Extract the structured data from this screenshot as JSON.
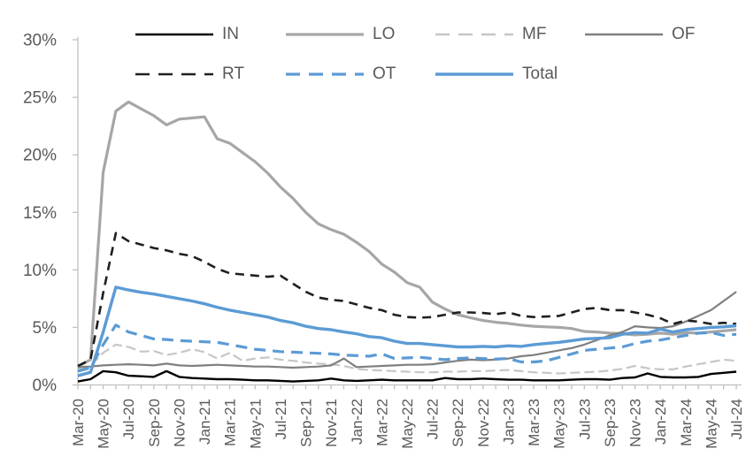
{
  "chart": {
    "title": "",
    "colors": {
      "accent_blue": "#5b9bd5",
      "gray_lodging": "#a6a6a6",
      "gray_office": "#7f7f7f",
      "gray_multifamily": "#c6c6c6",
      "near_black": "#1f1f1f",
      "axis_line": "#c0c0c0",
      "label_text": "#595959"
    }
  },
  "chart_data": {
    "type": "line",
    "title": "",
    "xlabel": "",
    "ylabel": "",
    "y_unit": "%",
    "ylim": [
      0,
      30
    ],
    "y_tick_step": 5,
    "y_tick_labels": [
      "0%",
      "5%",
      "10%",
      "15%",
      "20%",
      "25%",
      "30%"
    ],
    "grid": false,
    "legend_position": "top",
    "x_first_month": "Mar-20",
    "x_last_month": "Jul-24",
    "x_points_monthly": 53,
    "x_tick_labels": [
      "Mar-20",
      "May-20",
      "Jul-20",
      "Sep-20",
      "Nov-20",
      "Jan-21",
      "Mar-21",
      "May-21",
      "Jul-21",
      "Sep-21",
      "Nov-21",
      "Jan-22",
      "Mar-22",
      "May-22",
      "Jul-22",
      "Sep-22",
      "Nov-22",
      "Jan-23",
      "Mar-23",
      "May-23",
      "Jul-23",
      "Sep-23",
      "Nov-23",
      "Jan-24",
      "Mar-24",
      "May-24",
      "Jul-24"
    ],
    "series": [
      {
        "name": "IN",
        "color": "#000000",
        "dash": "",
        "width": 2.4,
        "values": [
          0.3,
          0.5,
          1.2,
          1.1,
          0.8,
          0.75,
          0.7,
          1.2,
          0.7,
          0.6,
          0.55,
          0.5,
          0.5,
          0.45,
          0.4,
          0.4,
          0.35,
          0.3,
          0.35,
          0.4,
          0.55,
          0.4,
          0.35,
          0.4,
          0.45,
          0.4,
          0.4,
          0.4,
          0.4,
          0.6,
          0.5,
          0.5,
          0.55,
          0.5,
          0.45,
          0.45,
          0.4,
          0.4,
          0.4,
          0.45,
          0.5,
          0.5,
          0.45,
          0.6,
          0.65,
          1.0,
          0.7,
          0.65,
          0.65,
          0.7,
          0.95,
          1.05,
          1.15
        ]
      },
      {
        "name": "LO",
        "color": "#a6a6a6",
        "dash": "",
        "width": 3.2,
        "values": [
          1.6,
          2.2,
          18.5,
          23.8,
          24.6,
          24.0,
          23.4,
          22.6,
          23.1,
          23.2,
          23.3,
          21.4,
          21.0,
          20.2,
          19.4,
          18.4,
          17.2,
          16.2,
          15.0,
          14.0,
          13.5,
          13.1,
          12.4,
          11.6,
          10.5,
          9.8,
          8.9,
          8.5,
          7.2,
          6.6,
          6.1,
          5.85,
          5.6,
          5.45,
          5.35,
          5.2,
          5.1,
          5.05,
          5.0,
          4.9,
          4.65,
          4.6,
          4.5,
          4.45,
          4.35,
          4.4,
          4.5,
          4.4,
          4.55,
          4.5,
          4.6,
          4.7,
          4.8
        ]
      },
      {
        "name": "MF",
        "color": "#c6c6c6",
        "dash": "11,5",
        "width": 2.2,
        "values": [
          1.4,
          1.7,
          2.8,
          3.5,
          3.3,
          2.9,
          2.95,
          2.6,
          2.8,
          3.1,
          2.85,
          2.3,
          2.8,
          2.1,
          2.3,
          2.4,
          2.2,
          2.1,
          1.95,
          1.85,
          1.8,
          1.65,
          1.4,
          1.3,
          1.25,
          1.2,
          1.15,
          1.1,
          1.1,
          1.15,
          1.15,
          1.2,
          1.2,
          1.25,
          1.3,
          1.2,
          1.1,
          1.05,
          1.0,
          1.05,
          1.1,
          1.15,
          1.25,
          1.4,
          1.65,
          1.45,
          1.35,
          1.35,
          1.6,
          1.8,
          2.0,
          2.2,
          2.1
        ]
      },
      {
        "name": "OF",
        "color": "#7f7f7f",
        "dash": "",
        "width": 2.2,
        "values": [
          1.55,
          1.6,
          1.7,
          1.75,
          1.8,
          1.75,
          1.7,
          1.85,
          1.7,
          1.65,
          1.7,
          1.75,
          1.7,
          1.65,
          1.6,
          1.6,
          1.55,
          1.5,
          1.55,
          1.6,
          1.7,
          2.3,
          1.55,
          1.6,
          1.65,
          1.7,
          1.75,
          1.75,
          1.8,
          1.95,
          2.1,
          2.2,
          2.15,
          2.2,
          2.3,
          2.5,
          2.6,
          2.8,
          3.0,
          3.2,
          3.5,
          3.9,
          4.3,
          4.6,
          5.1,
          5.0,
          4.95,
          5.1,
          5.5,
          6.0,
          6.5,
          7.3,
          8.1
        ]
      },
      {
        "name": "RT",
        "color": "#1f1f1f",
        "dash": "10,7",
        "width": 2.6,
        "values": [
          1.65,
          2.2,
          8.0,
          13.2,
          12.5,
          12.2,
          11.9,
          11.7,
          11.4,
          11.2,
          10.7,
          10.1,
          9.7,
          9.6,
          9.5,
          9.4,
          9.5,
          8.8,
          8.1,
          7.6,
          7.4,
          7.3,
          7.0,
          6.7,
          6.5,
          6.1,
          5.9,
          5.85,
          5.9,
          6.1,
          6.3,
          6.3,
          6.25,
          6.15,
          6.3,
          6.0,
          5.9,
          5.95,
          6.0,
          6.3,
          6.6,
          6.7,
          6.5,
          6.5,
          6.3,
          6.1,
          5.8,
          5.3,
          5.6,
          5.5,
          5.3,
          5.4,
          5.3
        ]
      },
      {
        "name": "OT",
        "color": "#5b9bd5",
        "dash": "13,8",
        "width": 3.2,
        "values": [
          1.2,
          1.5,
          3.5,
          5.2,
          4.6,
          4.3,
          4.0,
          3.95,
          3.85,
          3.8,
          3.75,
          3.7,
          3.5,
          3.3,
          3.1,
          3.0,
          2.9,
          2.85,
          2.8,
          2.75,
          2.7,
          2.6,
          2.55,
          2.5,
          2.7,
          2.3,
          2.35,
          2.4,
          2.3,
          2.2,
          2.3,
          2.35,
          2.3,
          2.25,
          2.3,
          2.0,
          2.0,
          2.1,
          2.4,
          2.7,
          3.0,
          3.1,
          3.2,
          3.3,
          3.6,
          3.8,
          3.9,
          4.1,
          4.3,
          4.5,
          4.55,
          4.3,
          4.4
        ]
      },
      {
        "name": "Total",
        "color": "#5b9bd5",
        "dash": "",
        "width": 3.4,
        "values": [
          0.8,
          1.1,
          4.6,
          8.5,
          8.25,
          8.05,
          7.9,
          7.7,
          7.5,
          7.3,
          7.05,
          6.75,
          6.5,
          6.3,
          6.1,
          5.9,
          5.6,
          5.4,
          5.1,
          4.9,
          4.8,
          4.6,
          4.45,
          4.2,
          4.1,
          3.8,
          3.6,
          3.6,
          3.5,
          3.4,
          3.3,
          3.3,
          3.35,
          3.3,
          3.4,
          3.35,
          3.5,
          3.6,
          3.7,
          3.85,
          4.0,
          4.05,
          4.1,
          4.4,
          4.55,
          4.5,
          4.85,
          4.6,
          4.8,
          4.9,
          5.0,
          5.05,
          5.15
        ]
      }
    ],
    "legend_rows": [
      [
        "IN",
        "LO",
        "MF",
        "OF"
      ],
      [
        "RT",
        "OT",
        "Total"
      ]
    ]
  }
}
